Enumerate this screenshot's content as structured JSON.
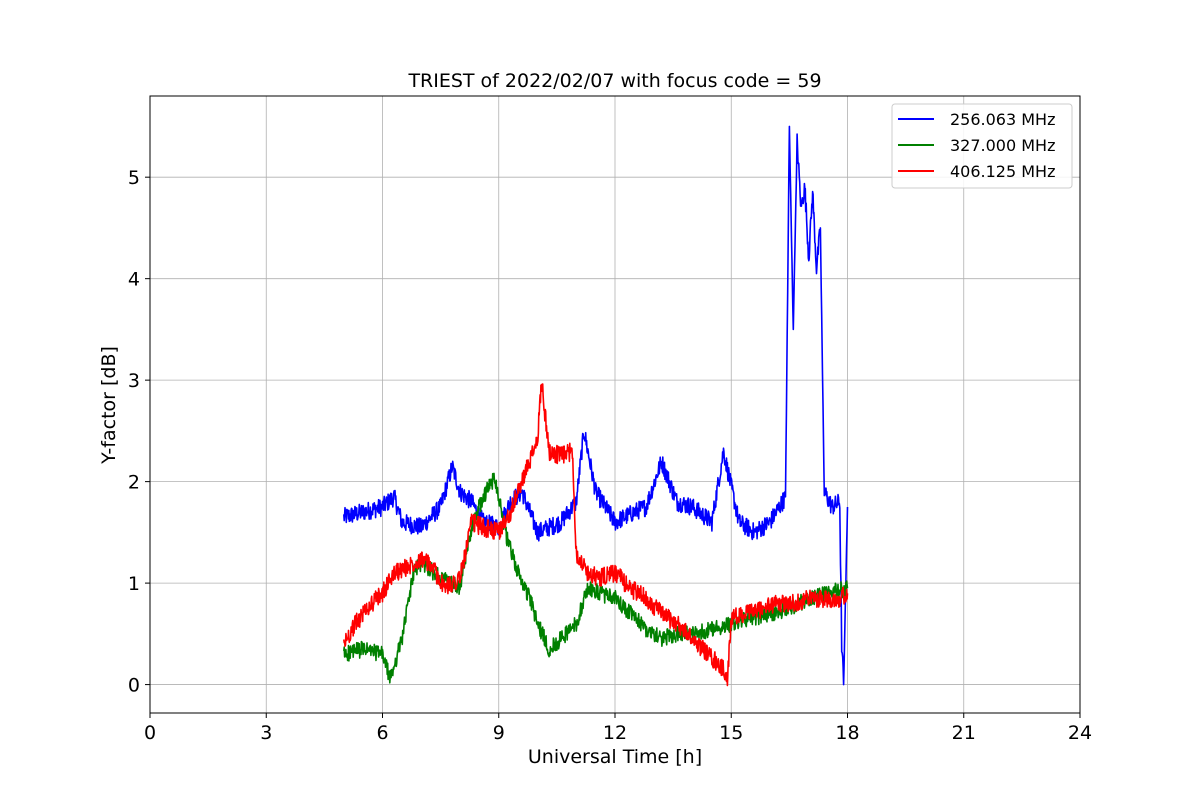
{
  "chart_data": {
    "type": "line",
    "title": "TRIEST of 2022/02/07 with focus code = 59",
    "xlabel": "Universal Time [h]",
    "ylabel": "Y-factor [dB]",
    "xlim": [
      0,
      24
    ],
    "ylim": [
      -0.28,
      5.8
    ],
    "xticks": [
      0,
      3,
      6,
      9,
      12,
      15,
      18,
      21,
      24
    ],
    "yticks": [
      0,
      1,
      2,
      3,
      4,
      5
    ],
    "grid": true,
    "legend_position": "top-right",
    "series": [
      {
        "name": "256.063 MHz",
        "color": "#0000ff",
        "x": [
          5.0,
          5.5,
          6.0,
          6.3,
          6.5,
          7.0,
          7.5,
          7.8,
          8.0,
          8.3,
          8.6,
          9.0,
          9.3,
          9.6,
          10.0,
          10.3,
          10.6,
          11.0,
          11.2,
          11.5,
          12.0,
          12.5,
          12.8,
          13.2,
          13.6,
          14.0,
          14.5,
          14.8,
          15.2,
          15.6,
          16.0,
          16.4,
          16.5,
          16.6,
          16.7,
          16.8,
          16.9,
          17.0,
          17.1,
          17.2,
          17.3,
          17.4,
          17.6,
          17.8,
          17.85,
          17.9,
          18.0
        ],
        "y": [
          1.65,
          1.7,
          1.75,
          1.85,
          1.6,
          1.55,
          1.75,
          2.15,
          1.9,
          1.8,
          1.6,
          1.55,
          1.8,
          1.9,
          1.5,
          1.55,
          1.6,
          1.8,
          2.5,
          1.9,
          1.6,
          1.7,
          1.75,
          2.2,
          1.8,
          1.75,
          1.6,
          2.3,
          1.6,
          1.5,
          1.6,
          1.85,
          5.5,
          3.5,
          5.35,
          4.7,
          4.9,
          4.2,
          4.85,
          4.1,
          4.5,
          1.9,
          1.75,
          1.8,
          0.4,
          0.0,
          1.75
        ]
      },
      {
        "name": "327.000 MHz",
        "color": "#008000",
        "x": [
          5.0,
          5.5,
          6.0,
          6.2,
          6.5,
          6.8,
          7.0,
          7.5,
          8.0,
          8.3,
          8.6,
          8.9,
          9.2,
          9.5,
          9.8,
          10.0,
          10.3,
          10.6,
          11.0,
          11.3,
          11.6,
          12.0,
          12.4,
          12.8,
          13.2,
          13.6,
          14.0,
          14.5,
          15.0,
          15.5,
          16.0,
          16.5,
          17.0,
          17.5,
          18.0
        ],
        "y": [
          0.3,
          0.35,
          0.3,
          0.05,
          0.45,
          1.1,
          1.2,
          1.05,
          0.95,
          1.55,
          1.85,
          2.05,
          1.45,
          1.1,
          0.85,
          0.6,
          0.35,
          0.45,
          0.6,
          0.95,
          0.9,
          0.85,
          0.7,
          0.55,
          0.45,
          0.5,
          0.5,
          0.55,
          0.6,
          0.65,
          0.7,
          0.75,
          0.85,
          0.9,
          0.95
        ]
      },
      {
        "name": "406.125 MHz",
        "color": "#ff0000",
        "x": [
          5.0,
          5.3,
          5.6,
          6.0,
          6.3,
          6.6,
          7.0,
          7.3,
          7.6,
          8.0,
          8.3,
          8.6,
          9.0,
          9.3,
          9.6,
          9.8,
          10.0,
          10.1,
          10.3,
          10.6,
          10.9,
          11.0,
          11.3,
          11.6,
          12.0,
          12.4,
          12.8,
          13.2,
          13.6,
          14.0,
          14.4,
          14.8,
          14.9,
          15.0,
          15.4,
          15.8,
          16.2,
          16.6,
          17.0,
          17.4,
          17.8,
          18.0
        ],
        "y": [
          0.4,
          0.6,
          0.75,
          0.9,
          1.1,
          1.15,
          1.25,
          1.15,
          0.95,
          1.05,
          1.6,
          1.55,
          1.5,
          1.7,
          2.0,
          2.2,
          2.4,
          3.0,
          2.3,
          2.25,
          2.3,
          1.3,
          1.1,
          1.05,
          1.1,
          0.95,
          0.85,
          0.7,
          0.6,
          0.45,
          0.3,
          0.15,
          0.05,
          0.65,
          0.7,
          0.75,
          0.8,
          0.8,
          0.85,
          0.85,
          0.85,
          0.9
        ]
      }
    ]
  }
}
